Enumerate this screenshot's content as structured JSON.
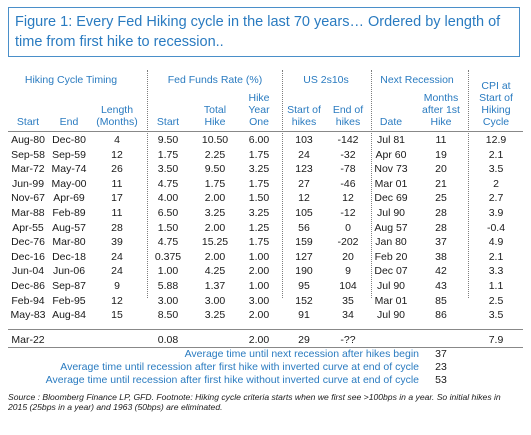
{
  "title": "Figure 1: Every Fed Hiking cycle in the last 70 years… Ordered by length of time from first hike to recession..",
  "groups": {
    "timing": "Hiking Cycle Timing",
    "ffr": "Fed Funds Rate (%)",
    "us2s10s": "US 2s10s",
    "recession": "Next Recession"
  },
  "headers": {
    "start": "Start",
    "end": "End",
    "length": [
      "Length",
      "(Months)"
    ],
    "ffr_start": "Start",
    "total_hike": [
      "Total",
      "Hike"
    ],
    "hike_year_one": [
      "Hike",
      "Year",
      "One"
    ],
    "start_of_hikes": [
      "Start of",
      "hikes"
    ],
    "end_of_hikes": [
      "End of",
      "hikes"
    ],
    "date": "Date",
    "months_after": [
      "Months",
      "after 1st",
      "Hike"
    ],
    "cpi": [
      "CPI at",
      "Start of",
      "Hiking",
      "Cycle"
    ]
  },
  "rows": [
    [
      "Aug-80",
      "Dec-80",
      "4",
      "9.50",
      "10.50",
      "6.00",
      "103",
      "-142",
      "Jul 81",
      "11",
      "12.9"
    ],
    [
      "Sep-58",
      "Sep-59",
      "12",
      "1.75",
      "2.25",
      "1.75",
      "24",
      "-32",
      "Apr 60",
      "19",
      "2.1"
    ],
    [
      "Mar-72",
      "May-74",
      "26",
      "3.50",
      "9.50",
      "3.25",
      "123",
      "-78",
      "Nov 73",
      "20",
      "3.5"
    ],
    [
      "Jun-99",
      "May-00",
      "11",
      "4.75",
      "1.75",
      "1.75",
      "27",
      "-46",
      "Mar 01",
      "21",
      "2"
    ],
    [
      "Nov-67",
      "Apr-69",
      "17",
      "4.00",
      "2.00",
      "1.50",
      "12",
      "12",
      "Dec 69",
      "25",
      "2.7"
    ],
    [
      "Mar-88",
      "Feb-89",
      "11",
      "6.50",
      "3.25",
      "3.25",
      "105",
      "-12",
      "Jul 90",
      "28",
      "3.9"
    ],
    [
      "Apr-55",
      "Aug-57",
      "28",
      "1.50",
      "2.00",
      "1.25",
      "56",
      "0",
      "Aug 57",
      "28",
      "-0.4"
    ],
    [
      "Dec-76",
      "Mar-80",
      "39",
      "4.75",
      "15.25",
      "1.75",
      "159",
      "-202",
      "Jan 80",
      "37",
      "4.9"
    ],
    [
      "Dec-16",
      "Dec-18",
      "24",
      "0.375",
      "2.00",
      "1.00",
      "127",
      "20",
      "Feb 20",
      "38",
      "2.1"
    ],
    [
      "Jun-04",
      "Jun-06",
      "24",
      "1.00",
      "4.25",
      "2.00",
      "190",
      "9",
      "Dec 07",
      "42",
      "3.3"
    ],
    [
      "Dec-86",
      "Sep-87",
      "9",
      "5.88",
      "1.37",
      "1.00",
      "95",
      "104",
      "Jul 90",
      "43",
      "1.1"
    ],
    [
      "Feb-94",
      "Feb-95",
      "12",
      "3.00",
      "3.00",
      "3.00",
      "152",
      "35",
      "Mar 01",
      "85",
      "2.5"
    ],
    [
      "May-83",
      "Aug-84",
      "15",
      "8.50",
      "3.25",
      "2.00",
      "91",
      "34",
      "Jul 90",
      "86",
      "3.5"
    ]
  ],
  "current_row": [
    "Mar-22",
    "",
    "",
    "0.08",
    "",
    "2.00",
    "29",
    "-??",
    "",
    "",
    "7.9"
  ],
  "summary": [
    {
      "label": "Average time until next recession after hikes begin",
      "value": "37"
    },
    {
      "label": "Average time until recession after first hike with inverted curve at end of cycle",
      "value": "23"
    },
    {
      "label": "Average time until recession after first hike without inverted curve at end of cycle",
      "value": "53"
    }
  ],
  "source": "Source : Bloomberg Finance LP, GFD. Footnote: Hiking cycle criteria starts when we first see >100bps in a year. So initial hikes in 2015 (25bps in a year) and 1963 (50bps) are eliminated."
}
